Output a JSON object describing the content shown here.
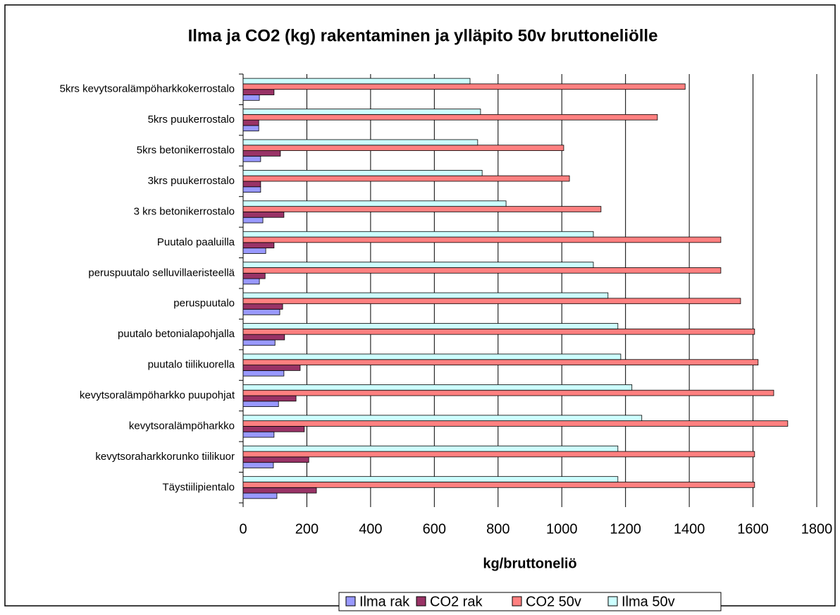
{
  "chart_data": {
    "type": "hbar",
    "title": "Ilma ja CO2 (kg) rakentaminen ja ylläpito 50v bruttoneliölle",
    "x_label": "kg/bruttoneliö",
    "categories": [
      "Täystiilipientalo",
      "kevytsoraharkkorunko tiilikuor",
      "kevytsoralämpöharkko",
      "kevytsoralämpöharkko puupohjat",
      "puutalo tiilikuorella",
      "puutalo betonialapohjalla",
      "peruspuutalo",
      "peruspuutalo selluvillaeristeellä",
      "Puutalo paaluilla",
      "3 krs betonikerrostalo",
      "3krs puukerrostalo",
      "5krs betonikerrostalo",
      "5krs puukerrostalo",
      "5krs kevytsoralämpöharkkokerrostalo"
    ],
    "series": [
      {
        "name": "Ilma rak",
        "color": "#9999ff",
        "values": [
          106,
          95,
          97,
          111,
          128,
          100,
          115,
          51,
          71,
          62,
          55,
          55,
          49,
          51
        ]
      },
      {
        "name": "CO2 rak",
        "color": "#993366",
        "values": [
          230,
          206,
          192,
          166,
          179,
          130,
          124,
          69,
          97,
          128,
          55,
          117,
          49,
          97
        ]
      },
      {
        "name": "CO2 50v",
        "color": "#ff8080",
        "values": [
          1605,
          1605,
          1709,
          1665,
          1616,
          1605,
          1561,
          1499,
          1499,
          1123,
          1024,
          1006,
          1300,
          1387
        ]
      },
      {
        "name": "Ilma 50v",
        "color": "#ccffff",
        "values": [
          1176,
          1176,
          1251,
          1220,
          1185,
          1176,
          1145,
          1099,
          1099,
          825,
          750,
          736,
          745,
          712
        ]
      }
    ],
    "xlim": [
      0,
      1800
    ],
    "xticks": [
      0,
      200,
      400,
      600,
      800,
      1000,
      1200,
      1400,
      1600,
      1800
    ],
    "grid": true,
    "legend": "bottom"
  }
}
